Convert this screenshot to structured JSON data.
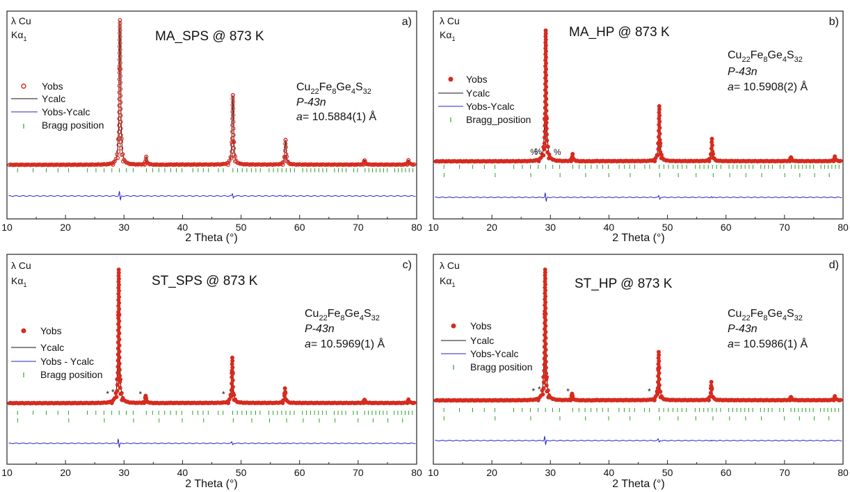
{
  "colors": {
    "obs": "#d62b1f",
    "calc": "#111111",
    "diff": "#2323c8",
    "bragg": "#27a327",
    "axis": "#222222"
  },
  "chart_data": [
    {
      "type": "line",
      "panel_label": "a)",
      "title": "MA_SPS @ 873 K",
      "wavelength_line1": "λ Cu",
      "wavelength_line2": "Kα",
      "wavelength_sub": "1",
      "xlabel": "2 Theta (°)",
      "xlim": [
        10,
        80
      ],
      "x_ticks": [
        10,
        20,
        30,
        40,
        50,
        60,
        70,
        80
      ],
      "phase": {
        "formula_parts": [
          "Cu",
          "22",
          "Fe",
          "8",
          "Ge",
          "4",
          "S",
          "32"
        ],
        "space_group": "P-43n",
        "lattice_label": "a",
        "lattice_value": "= 10.5884(1) Å"
      },
      "legend": [
        "Yobs",
        "Ycalc",
        "Yobs-Ycalc",
        "Bragg position"
      ],
      "series": [
        {
          "name": "Yobs",
          "x": [
            29.3,
            33.8,
            48.6,
            57.6,
            71.1,
            78.6
          ],
          "intensity": [
            100,
            5.5,
            48,
            17,
            3,
            3
          ]
        },
        {
          "name": "Ycalc",
          "x": [
            29.3,
            33.8,
            48.6,
            57.6,
            71.1,
            78.6
          ],
          "intensity": [
            100,
            5.5,
            48,
            17,
            3,
            3
          ]
        }
      ],
      "impurity_markers": {
        "symbol": "",
        "x": []
      }
    },
    {
      "type": "line",
      "panel_label": "b)",
      "title": "MA_HP @ 873 K",
      "wavelength_line1": "λ Cu",
      "wavelength_line2": "Kα",
      "wavelength_sub": "1",
      "xlabel": "2 Theta (°)",
      "xlim": [
        10,
        80
      ],
      "x_ticks": [
        10,
        20,
        30,
        40,
        50,
        60,
        70,
        80
      ],
      "phase": {
        "formula_parts": [
          "Cu",
          "22",
          "Fe",
          "8",
          "Ge",
          "4",
          "S",
          "32"
        ],
        "space_group": "P-43n",
        "lattice_label": "a",
        "lattice_value": "= 10.5908(2) Å"
      },
      "legend": [
        "Yobs",
        "Ycalc",
        "Yobs-Ycalc",
        "Bragg_position"
      ],
      "series": [
        {
          "name": "Yobs",
          "x": [
            29.2,
            33.8,
            48.6,
            57.6,
            71.1,
            78.6
          ],
          "intensity": [
            100,
            5.5,
            42,
            17,
            3,
            3.5
          ]
        },
        {
          "name": "Ycalc",
          "x": [
            29.2,
            33.8,
            48.6,
            57.6,
            71.1,
            78.6
          ],
          "intensity": [
            100,
            5.5,
            42,
            17,
            3,
            3.5
          ]
        }
      ],
      "impurity_markers": {
        "symbol": "%",
        "x": [
          27.2,
          27.9,
          31.2
        ]
      }
    },
    {
      "type": "line",
      "panel_label": "c)",
      "title": "ST_SPS @ 873 K",
      "wavelength_line1": "λ Cu",
      "wavelength_line2": "Kα",
      "wavelength_sub": "1",
      "xlabel": "2 Theta (°)",
      "xlim": [
        10,
        80
      ],
      "x_ticks": [
        10,
        20,
        30,
        40,
        50,
        60,
        70,
        80
      ],
      "phase": {
        "formula_parts": [
          "Cu",
          "22",
          "Fe",
          "8",
          "Ge",
          "4",
          "S",
          "32"
        ],
        "space_group": "P-43n",
        "lattice_label": "a",
        "lattice_value": "= 10.5969(1) Å"
      },
      "legend": [
        "Yobs",
        "Ycalc",
        "Yobs - Ycalc",
        "Bragg position"
      ],
      "series": [
        {
          "name": "Yobs",
          "x": [
            29.1,
            33.7,
            48.5,
            57.5,
            71.1,
            78.6
          ],
          "intensity": [
            100,
            5.5,
            34,
            11,
            2.5,
            2.5
          ]
        },
        {
          "name": "Ycalc",
          "x": [
            29.1,
            33.7,
            48.5,
            57.5,
            71.1,
            78.6
          ],
          "intensity": [
            100,
            5.5,
            34,
            11,
            2.5,
            2.5
          ]
        }
      ],
      "impurity_markers": {
        "symbol": "*",
        "x": [
          27.2,
          28.1,
          32.8,
          47.0
        ]
      }
    },
    {
      "type": "line",
      "panel_label": "d)",
      "title": "ST_HP @ 873 K",
      "wavelength_line1": "λ Cu",
      "wavelength_line2": "Kα",
      "wavelength_sub": "1",
      "xlabel": "2 Theta (°)",
      "xlim": [
        10,
        80
      ],
      "x_ticks": [
        10,
        20,
        30,
        40,
        50,
        60,
        70,
        80
      ],
      "phase": {
        "formula_parts": [
          "Cu",
          "22",
          "Fe",
          "8",
          "Ge",
          "4",
          "S",
          "32"
        ],
        "space_group": "P-43n",
        "lattice_label": "a",
        "lattice_value": "= 10.5986(1) Å"
      },
      "legend": [
        "Yobs",
        "Ycalc",
        "Yobs-Ycalc",
        "Bragg position"
      ],
      "series": [
        {
          "name": "Yobs",
          "x": [
            29.1,
            33.7,
            48.5,
            57.5,
            71.1,
            78.6
          ],
          "intensity": [
            100,
            5,
            37,
            14,
            2.5,
            3
          ]
        },
        {
          "name": "Ycalc",
          "x": [
            29.1,
            33.7,
            48.5,
            57.5,
            71.1,
            78.6
          ],
          "intensity": [
            100,
            5,
            37,
            14,
            2.5,
            3
          ]
        }
      ],
      "impurity_markers": {
        "symbol": "*",
        "x": [
          27.1,
          28.1,
          33.0,
          46.9
        ]
      }
    }
  ]
}
